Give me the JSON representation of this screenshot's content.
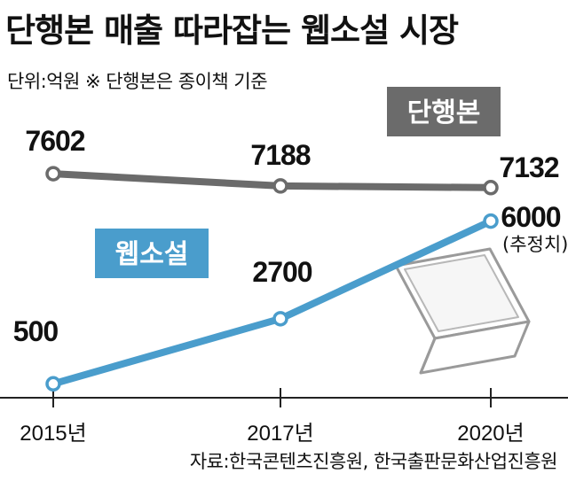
{
  "header": {
    "title": "단행본 매출 따라잡는 웹소설 시장",
    "subtitle": "단위:억원  ※ 단행본은 종이책 기준"
  },
  "footer": {
    "source": "자료:한국콘텐츠진흥원, 한국출판문화산업진흥원"
  },
  "chart_data": {
    "type": "line",
    "x": [
      "2015년",
      "2017년",
      "2020년"
    ],
    "series": [
      {
        "name": "단행본",
        "values": [
          7602,
          7188,
          7132
        ],
        "labels": [
          "7602",
          "7188",
          "7132"
        ],
        "color": "#6b6b6b"
      },
      {
        "name": "웹소설",
        "values": [
          500,
          2700,
          6000
        ],
        "labels": [
          "500",
          "2700",
          "6000"
        ],
        "color": "#4a9dcc"
      }
    ],
    "annotation": "(추정치)",
    "ylim": [
      0,
      8000
    ],
    "grid": false,
    "legend": "inline-tags"
  }
}
